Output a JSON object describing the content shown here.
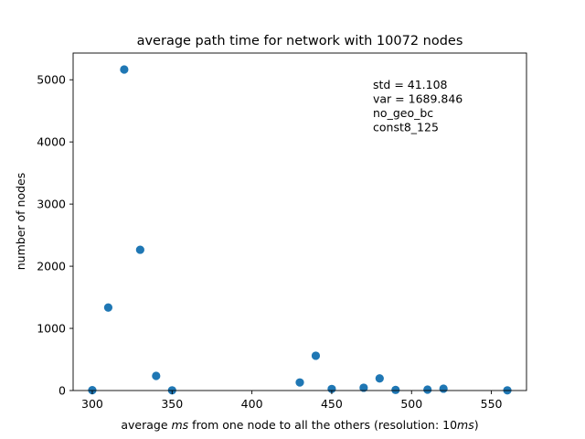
{
  "chart_data": {
    "type": "scatter",
    "title": "average path time for network with 10072 nodes",
    "xlabel": {
      "prefix": "average ",
      "ms": "ms",
      "middle": " from one node to all  the others (resolution: 10",
      "suffix": ")"
    },
    "ylabel": "number of nodes",
    "xlim": [
      288,
      572
    ],
    "ylim": [
      0,
      5430
    ],
    "xticks": [
      300,
      350,
      400,
      450,
      500,
      550
    ],
    "yticks": [
      0,
      1000,
      2000,
      3000,
      4000,
      5000
    ],
    "grid": false,
    "marker_color": "#1f77b4",
    "points": [
      {
        "x": 300,
        "y": 5
      },
      {
        "x": 310,
        "y": 1335
      },
      {
        "x": 320,
        "y": 5165
      },
      {
        "x": 330,
        "y": 2265
      },
      {
        "x": 340,
        "y": 235
      },
      {
        "x": 350,
        "y": 3
      },
      {
        "x": 430,
        "y": 130
      },
      {
        "x": 440,
        "y": 560
      },
      {
        "x": 450,
        "y": 25
      },
      {
        "x": 470,
        "y": 45
      },
      {
        "x": 480,
        "y": 195
      },
      {
        "x": 490,
        "y": 10
      },
      {
        "x": 510,
        "y": 15
      },
      {
        "x": 520,
        "y": 30
      },
      {
        "x": 560,
        "y": 3
      }
    ],
    "annotations": [
      "std = 41.108",
      "var = 1689.846",
      "no_geo_bc",
      "const8_125"
    ]
  }
}
